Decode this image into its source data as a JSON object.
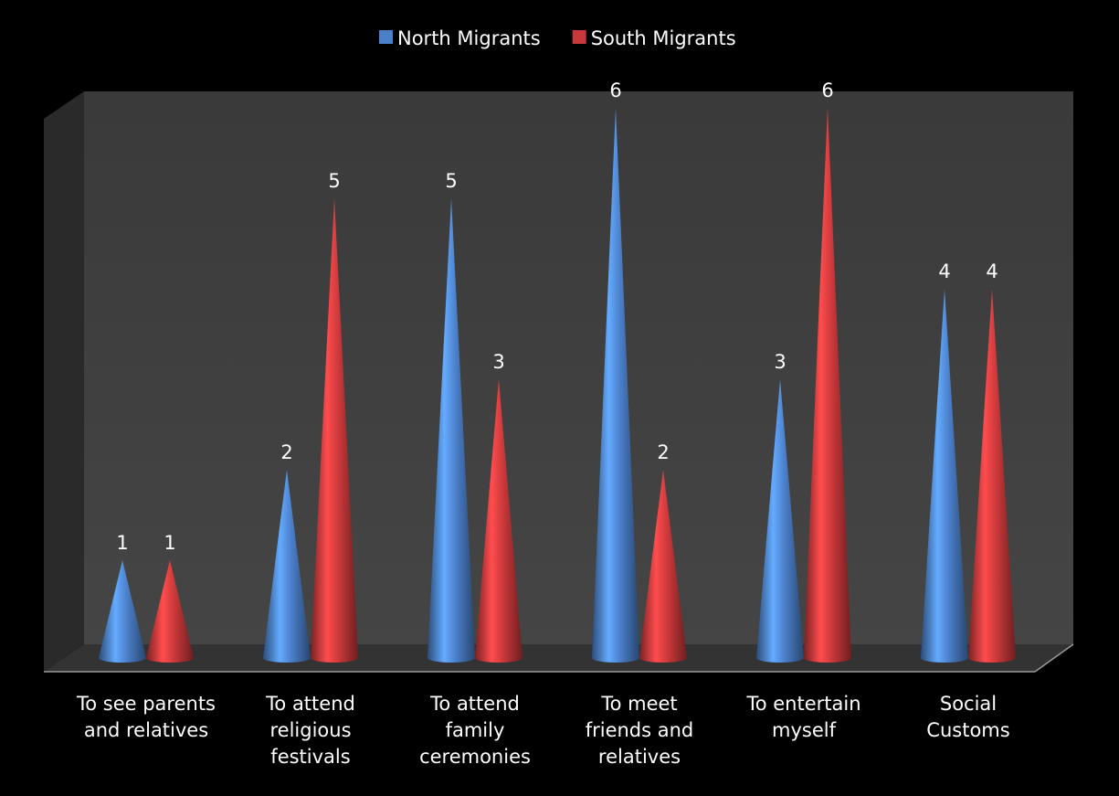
{
  "chart_data": {
    "type": "cone3d",
    "categories": [
      "To see parents\nand relatives",
      "To attend\nreligious\nfestivals",
      "To attend\nfamily\nceremonies",
      "To meet\nfriends and\nrelatives",
      "To entertain\nmyself",
      "Social\nCustoms"
    ],
    "series": [
      {
        "name": "North Migrants",
        "color": "#4a7fc9",
        "values": [
          1,
          2,
          5,
          6,
          3,
          4
        ]
      },
      {
        "name": "South Migrants",
        "color": "#c9383a",
        "values": [
          1,
          5,
          3,
          2,
          6,
          4
        ]
      }
    ],
    "ylim": [
      0,
      6
    ],
    "legend": "top"
  }
}
